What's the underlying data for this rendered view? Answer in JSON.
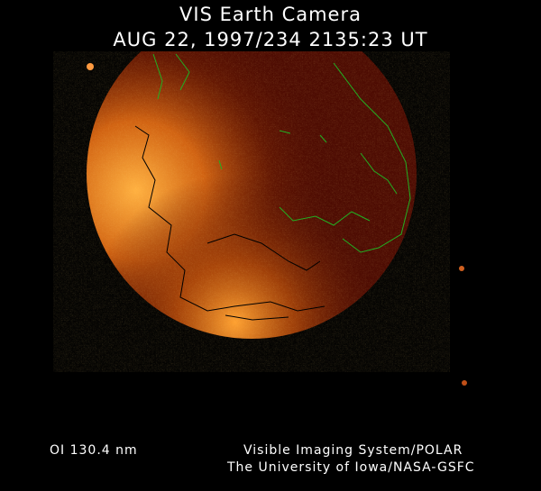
{
  "header": {
    "title": "VIS Earth Camera",
    "subtitle": "AUG 22, 1997/234 2135:23 UT"
  },
  "footer": {
    "wavelength": "OI  130.4 nm",
    "credit_line1": "Visible Imaging System/POLAR",
    "credit_line2": "The University of Iowa/NASA-GSFC"
  },
  "colors": {
    "background": "#000000",
    "disk": "#4a0800",
    "aurora": "#ff9a2a",
    "coastline_lit": "#000000",
    "coastline_dark": "#22b022"
  }
}
